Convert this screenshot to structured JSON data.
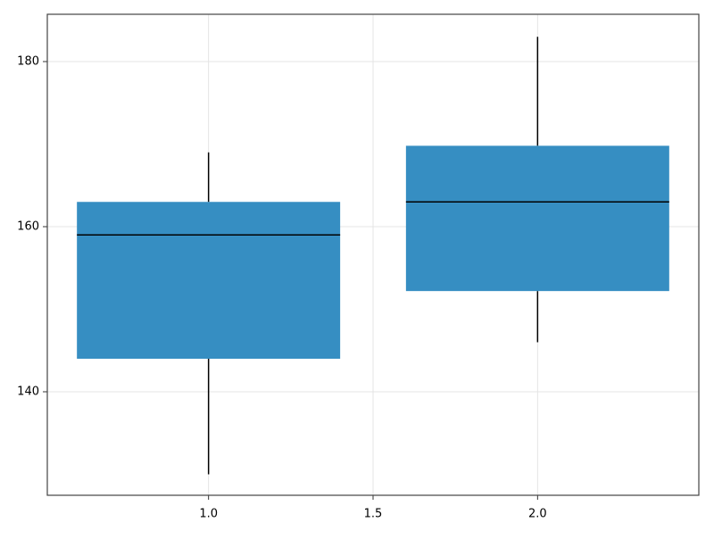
{
  "chart_data": {
    "type": "box",
    "color": "#368ec2",
    "boxes": [
      {
        "x": 1,
        "whislo": 130,
        "q1": 144,
        "median": 159,
        "q3": 163,
        "whishi": 169
      },
      {
        "x": 2,
        "whislo": 146,
        "q1": 152.2,
        "median": 163,
        "q3": 169.8,
        "whishi": 183
      }
    ],
    "xlim": [
      0.51,
      2.49
    ],
    "xticks": [
      {
        "value": 1,
        "label": "1.0"
      },
      {
        "value": 1.5,
        "label": "1.5"
      },
      {
        "value": 2,
        "label": "2.0"
      }
    ],
    "ylim": [
      127.46,
      185.73
    ],
    "yticks": [
      140,
      160,
      180
    ],
    "grid": true
  }
}
